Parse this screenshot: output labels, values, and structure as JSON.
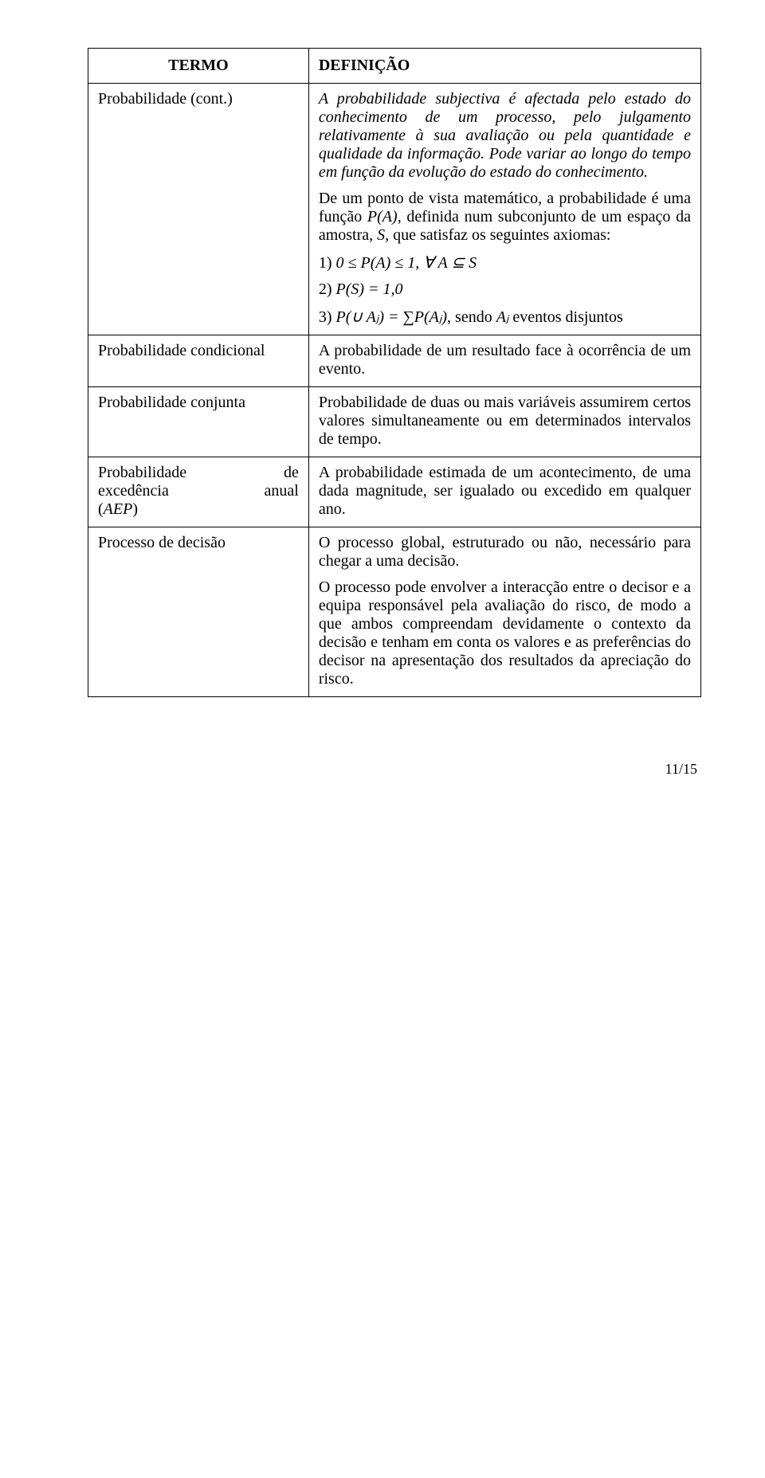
{
  "header": {
    "term": "TERMO",
    "def": "DEFINIÇÃO"
  },
  "rows": {
    "r1": {
      "term": "Probabilidade (cont.)",
      "p1_a": "A probabilidade subjectiva é afectada pelo estado do conhecimento de um processo, pelo julgamento relativamente à sua avaliação ou pela quantidade e qualidade da informação. Pode variar ao longo do tempo em função da evolução do estado do conhecimento.",
      "p2": "De um ponto de vista matemático, a probabilidade é uma função ",
      "p2_pa": "P(A)",
      "p2_mid": ", definida num subconjunto de um espaço da amostra, ",
      "p2_s": "S",
      "p2_end": ", que satisfaz os seguintes axiomas:",
      "ax1_a": "1) ",
      "ax1_b": "0",
      "ax1_c": " ≤ ",
      "ax1_d": "P(A)",
      "ax1_e": " ≤ ",
      "ax1_f": "1,  ∀ A ⊆ S",
      "ax2_a": "2) ",
      "ax2_b": "P(S) = 1,0",
      "ax3_a": "3) ",
      "ax3_b": "P(∪ Aⱼ) = ∑P(Aⱼ)",
      "ax3_c": ", sendo ",
      "ax3_d": "Aⱼ",
      "ax3_e": " eventos disjuntos"
    },
    "r2": {
      "term": "Probabilidade condicional",
      "def": "A probabilidade de um resultado face à ocorrência de um evento."
    },
    "r3": {
      "term": "Probabilidade conjunta",
      "def": "Probabilidade de duas ou mais variáveis assumirem certos valores simultaneamente ou em determinados intervalos de tempo."
    },
    "r4": {
      "term_l1a": "Probabilidade",
      "term_l1b": "de",
      "term_l2a": "excedência",
      "term_l2b": "anual",
      "term_l3": "(",
      "term_l3i": "AEP",
      "term_l3e": ")",
      "def": "A probabilidade estimada de um acontecimento, de uma dada magnitude, ser igualado ou excedido em qualquer ano."
    },
    "r5": {
      "term": "Processo de decisão",
      "p1": "O processo global, estruturado ou não, necessário para chegar a uma decisão.",
      "p2": "O processo pode envolver a interacção entre o decisor e a equipa responsável pela avaliação do risco, de modo a que ambos compreendam devidamente o contexto da decisão e tenham em conta os valores e as preferências do decisor na apresentação dos resultados da apreciação do risco."
    }
  },
  "footer": "11/15"
}
